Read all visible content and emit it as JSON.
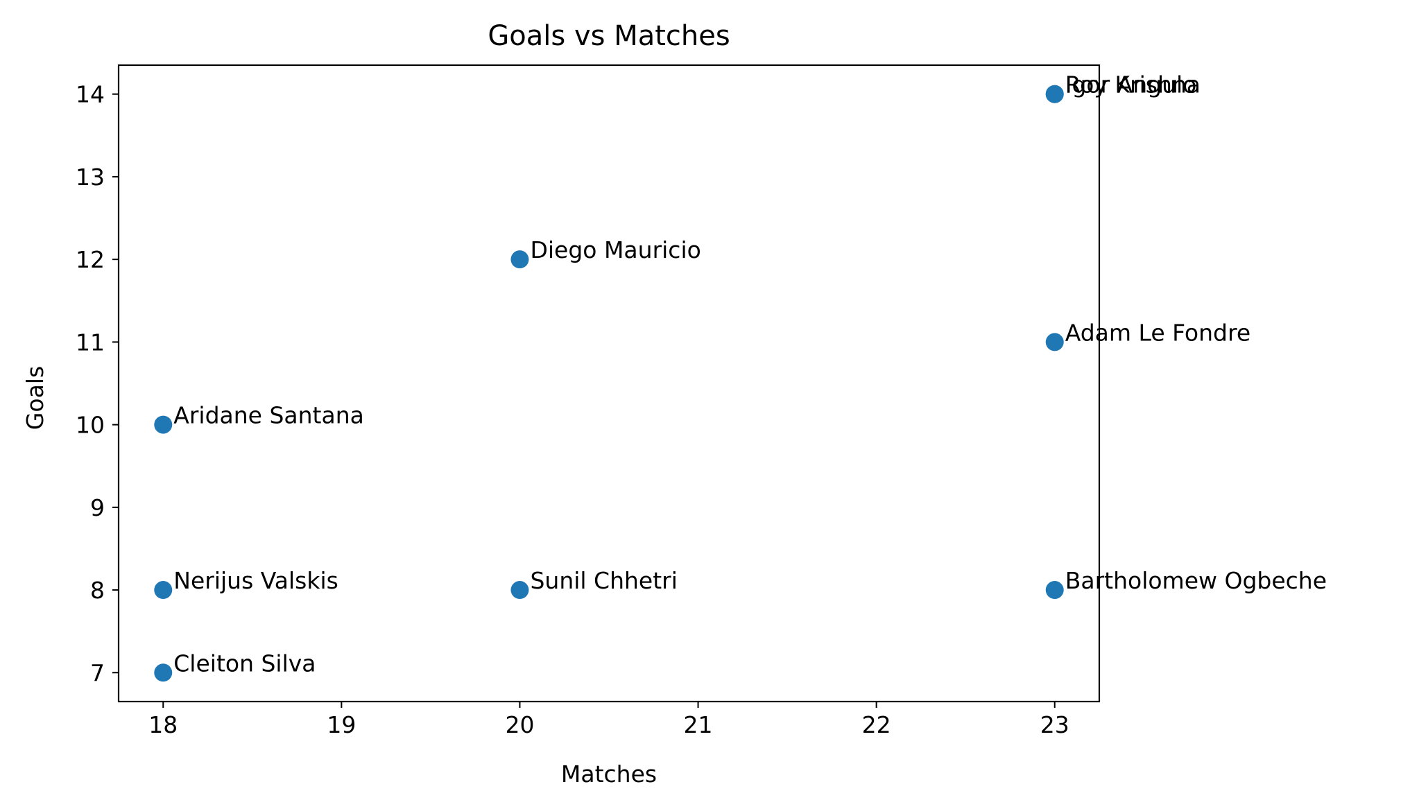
{
  "chart_data": {
    "type": "scatter",
    "title": "Goals vs Matches",
    "xlabel": "Matches",
    "ylabel": "Goals",
    "xlim": [
      17.75,
      23.25
    ],
    "ylim": [
      6.65,
      14.35
    ],
    "xticks": [
      18,
      19,
      20,
      21,
      22,
      23
    ],
    "yticks": [
      7,
      8,
      9,
      10,
      11,
      12,
      13,
      14
    ],
    "grid": false,
    "colors": {
      "point": "#1f77b4"
    },
    "points": [
      {
        "label": "Igor Angulo",
        "x": 23,
        "y": 14
      },
      {
        "label": "Roy Krishna",
        "x": 23,
        "y": 14
      },
      {
        "label": "Diego Mauricio",
        "x": 20,
        "y": 12
      },
      {
        "label": "Adam Le Fondre",
        "x": 23,
        "y": 11
      },
      {
        "label": "Aridane Santana",
        "x": 18,
        "y": 10
      },
      {
        "label": "Nerijus Valskis",
        "x": 18,
        "y": 8
      },
      {
        "label": "Sunil Chhetri",
        "x": 20,
        "y": 8
      },
      {
        "label": "Bartholomew Ogbeche",
        "x": 23,
        "y": 8
      },
      {
        "label": "Cleiton Silva",
        "x": 18,
        "y": 7
      }
    ]
  }
}
